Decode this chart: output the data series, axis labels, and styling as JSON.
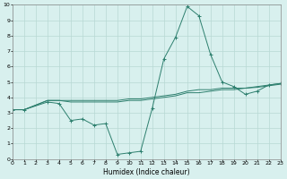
{
  "xlabel": "Humidex (Indice chaleur)",
  "x": [
    0,
    1,
    2,
    3,
    4,
    5,
    6,
    7,
    8,
    9,
    10,
    11,
    12,
    13,
    14,
    15,
    16,
    17,
    18,
    19,
    20,
    21,
    22,
    23
  ],
  "line1": [
    3.2,
    3.2,
    null,
    3.7,
    3.6,
    2.5,
    2.6,
    2.2,
    2.3,
    0.3,
    0.4,
    0.5,
    3.3,
    6.5,
    7.9,
    9.9,
    9.3,
    6.8,
    5.0,
    4.7,
    4.2,
    4.4,
    4.8,
    4.9
  ],
  "line2": [
    3.2,
    3.2,
    null,
    3.8,
    3.8,
    3.8,
    3.8,
    3.8,
    3.8,
    3.8,
    3.9,
    3.9,
    4.0,
    4.1,
    4.2,
    4.4,
    4.5,
    4.5,
    4.6,
    4.6,
    4.6,
    4.7,
    4.8,
    4.9
  ],
  "line3": [
    3.2,
    3.2,
    null,
    3.8,
    3.8,
    3.7,
    3.7,
    3.7,
    3.7,
    3.7,
    3.8,
    3.8,
    3.9,
    4.0,
    4.1,
    4.3,
    4.3,
    4.4,
    4.5,
    4.5,
    4.6,
    4.65,
    4.75,
    4.85
  ],
  "line_color": "#2d7f6e",
  "bg_color": "#d8f0ee",
  "grid_color": "#b8d8d4",
  "xlim": [
    0,
    23
  ],
  "ylim": [
    0,
    10
  ],
  "xticks": [
    0,
    1,
    2,
    3,
    4,
    5,
    6,
    7,
    8,
    9,
    10,
    11,
    12,
    13,
    14,
    15,
    16,
    17,
    18,
    19,
    20,
    21,
    22,
    23
  ],
  "yticks": [
    0,
    1,
    2,
    3,
    4,
    5,
    6,
    7,
    8,
    9,
    10
  ]
}
